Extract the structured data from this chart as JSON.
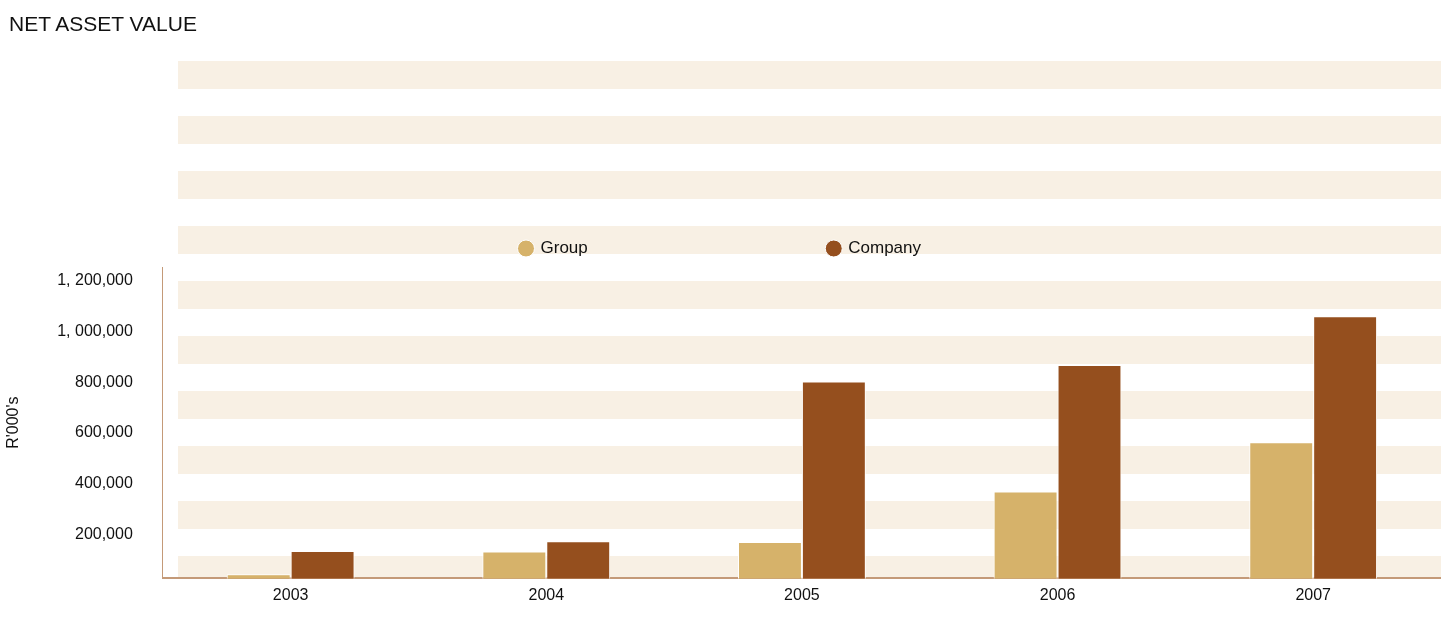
{
  "chart_data": {
    "type": "bar",
    "title": "NET ASSET VALUE",
    "ylabel": "R'000's",
    "categories": [
      "2003",
      "2004",
      "2005",
      "2006",
      "2007"
    ],
    "series": [
      {
        "name": "Group",
        "color": "#d6b26a",
        "values": [
          41000,
          131000,
          169000,
          368000,
          563000
        ]
      },
      {
        "name": "Company",
        "color": "#954f1e",
        "values": [
          133000,
          172000,
          803000,
          868000,
          1060000
        ]
      }
    ],
    "ylim": [
      25000,
      1255000
    ],
    "yticks": [
      {
        "value": 200000,
        "label": "200,000"
      },
      {
        "value": 400000,
        "label": "400,000"
      },
      {
        "value": 600000,
        "label": "600,000"
      },
      {
        "value": 800000,
        "label": "800,000"
      },
      {
        "value": 1000000,
        "label": "1, 000,000"
      },
      {
        "value": 1200000,
        "label": "1, 200,000"
      }
    ],
    "grid": false,
    "legend": "top"
  }
}
